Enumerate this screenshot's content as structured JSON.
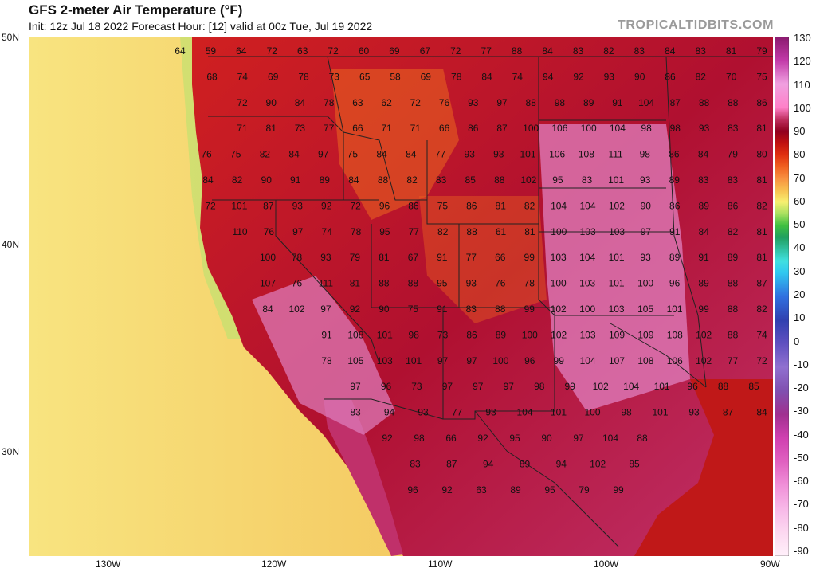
{
  "header": {
    "title": "GFS 2-meter Air Temperature (°F)",
    "subtitle": "Init: 12z Jul 18 2022   Forecast Hour: [12]   valid at 00z Tue, Jul 19 2022",
    "brand": "TROPICALTIDBITS.COM"
  },
  "axes": {
    "lat_labels": [
      "50N",
      "40N",
      "30N"
    ],
    "lon_labels": [
      "130W",
      "120W",
      "110W",
      "100W",
      "90W"
    ]
  },
  "colorbar": {
    "labels": [
      "130",
      "120",
      "110",
      "100",
      "90",
      "80",
      "70",
      "60",
      "50",
      "40",
      "30",
      "20",
      "10",
      "0",
      "-10",
      "-20",
      "-30",
      "-40",
      "-50",
      "-60",
      "-70",
      "-80",
      "-90"
    ],
    "stops": [
      {
        "v": 130,
        "c": "#8a1a6e"
      },
      {
        "v": 120,
        "c": "#c23aa8"
      },
      {
        "v": 110,
        "c": "#f0a0e0"
      },
      {
        "v": 100,
        "c": "#ff80c8"
      },
      {
        "v": 95,
        "c": "#c03060"
      },
      {
        "v": 90,
        "c": "#900020"
      },
      {
        "v": 85,
        "c": "#c01010"
      },
      {
        "v": 80,
        "c": "#e03010"
      },
      {
        "v": 75,
        "c": "#f06020"
      },
      {
        "v": 70,
        "c": "#f89040"
      },
      {
        "v": 65,
        "c": "#f8c050"
      },
      {
        "v": 60,
        "c": "#f8f070"
      },
      {
        "v": 55,
        "c": "#a8e060"
      },
      {
        "v": 50,
        "c": "#40c040"
      },
      {
        "v": 45,
        "c": "#20a060"
      },
      {
        "v": 40,
        "c": "#30c0a0"
      },
      {
        "v": 35,
        "c": "#40e0e0"
      },
      {
        "v": 30,
        "c": "#30c8f0"
      },
      {
        "v": 20,
        "c": "#3070e0"
      },
      {
        "v": 10,
        "c": "#3040b0"
      },
      {
        "v": 0,
        "c": "#6050c0"
      },
      {
        "v": -10,
        "c": "#9070d0"
      },
      {
        "v": -20,
        "c": "#8050b0"
      },
      {
        "v": -30,
        "c": "#a03090"
      },
      {
        "v": -40,
        "c": "#d040b0"
      },
      {
        "v": -50,
        "c": "#e060c0"
      },
      {
        "v": -60,
        "c": "#f090d8"
      },
      {
        "v": -70,
        "c": "#f8b8e8"
      },
      {
        "v": -80,
        "c": "#fcd8f0"
      },
      {
        "v": -90,
        "c": "#fff0fa"
      }
    ]
  },
  "map": {
    "colors": {
      "ocean_far": "#f8e480",
      "ocean_mid": "#f4c860",
      "ocean_near": "#f0a850",
      "ocean_cool": "#c8e070",
      "ocean_green": "#70c860",
      "land_hot": "#b01030",
      "land_red": "#d02020",
      "land_pink": "#e080c0",
      "land_mag": "#c0306a",
      "land_orange": "#e86020",
      "gulf": "#c01818"
    },
    "rows": [
      [
        "64",
        "59",
        "64",
        "72",
        "63",
        "72",
        "60",
        "69",
        "67",
        "72",
        "77",
        "88",
        "84",
        "83",
        "82",
        "83",
        "84",
        "83",
        "81",
        "79"
      ],
      [
        "68",
        "74",
        "69",
        "78",
        "73",
        "65",
        "58",
        "69",
        "78",
        "84",
        "74",
        "94",
        "92",
        "93",
        "90",
        "86",
        "82",
        "70",
        "75"
      ],
      [
        "72",
        "90",
        "84",
        "78",
        "63",
        "62",
        "72",
        "76",
        "93",
        "97",
        "88",
        "98",
        "89",
        "91",
        "104",
        "87",
        "88",
        "88",
        "86"
      ],
      [
        "71",
        "81",
        "73",
        "77",
        "66",
        "71",
        "71",
        "66",
        "86",
        "87",
        "100",
        "106",
        "100",
        "104",
        "98",
        "98",
        "93",
        "83",
        "81"
      ],
      [
        "76",
        "75",
        "82",
        "84",
        "97",
        "75",
        "84",
        "84",
        "77",
        "93",
        "93",
        "101",
        "106",
        "108",
        "111",
        "98",
        "86",
        "84",
        "79",
        "80"
      ],
      [
        "84",
        "82",
        "90",
        "91",
        "89",
        "84",
        "88",
        "82",
        "83",
        "85",
        "88",
        "102",
        "95",
        "83",
        "101",
        "93",
        "89",
        "83",
        "83",
        "81"
      ],
      [
        "72",
        "101",
        "87",
        "93",
        "92",
        "72",
        "96",
        "86",
        "75",
        "86",
        "81",
        "82",
        "104",
        "104",
        "102",
        "90",
        "86",
        "89",
        "86",
        "82"
      ],
      [
        "110",
        "76",
        "97",
        "74",
        "78",
        "95",
        "77",
        "82",
        "88",
        "61",
        "81",
        "100",
        "103",
        "103",
        "97",
        "91",
        "84",
        "82",
        "81"
      ],
      [
        "100",
        "78",
        "93",
        "79",
        "81",
        "67",
        "91",
        "77",
        "66",
        "99",
        "103",
        "104",
        "101",
        "93",
        "89",
        "91",
        "89",
        "81"
      ],
      [
        "107",
        "76",
        "111",
        "81",
        "88",
        "88",
        "95",
        "93",
        "76",
        "78",
        "100",
        "103",
        "101",
        "100",
        "96",
        "89",
        "88",
        "87"
      ],
      [
        "84",
        "102",
        "97",
        "92",
        "90",
        "75",
        "91",
        "83",
        "88",
        "99",
        "102",
        "100",
        "103",
        "105",
        "101",
        "99",
        "88",
        "82"
      ],
      [
        "91",
        "108",
        "101",
        "98",
        "73",
        "86",
        "89",
        "100",
        "102",
        "103",
        "109",
        "109",
        "108",
        "102",
        "88",
        "74"
      ],
      [
        "78",
        "105",
        "103",
        "101",
        "97",
        "97",
        "100",
        "96",
        "99",
        "104",
        "107",
        "108",
        "106",
        "102",
        "77",
        "72"
      ],
      [
        "97",
        "96",
        "73",
        "97",
        "97",
        "97",
        "98",
        "99",
        "102",
        "104",
        "101",
        "96",
        "88",
        "85"
      ],
      [
        "83",
        "94",
        "93",
        "77",
        "93",
        "104",
        "101",
        "100",
        "98",
        "101",
        "93",
        "87",
        "84"
      ],
      [
        "92",
        "98",
        "66",
        "92",
        "95",
        "90",
        "97",
        "104",
        "88"
      ],
      [
        "83",
        "87",
        "94",
        "89",
        "94",
        "102",
        "85"
      ],
      [
        "96",
        "92",
        "63",
        "89",
        "95",
        "79",
        "99"
      ]
    ]
  }
}
